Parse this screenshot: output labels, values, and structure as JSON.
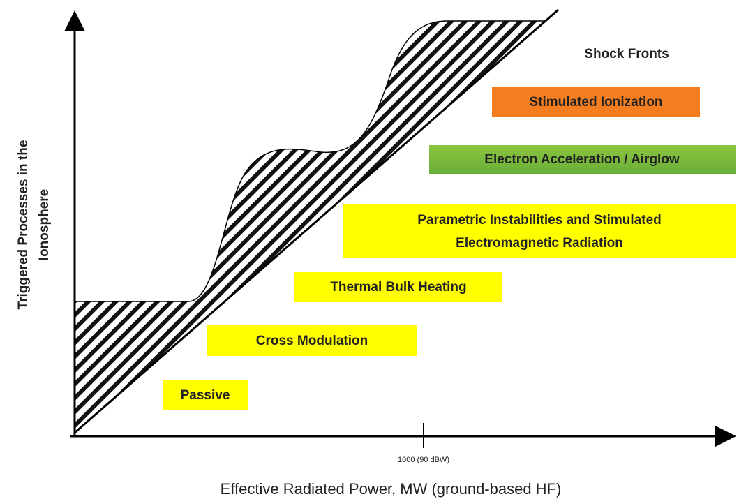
{
  "diagram": {
    "y_axis_label": [
      "Triggered Processes in the",
      "Ionosphere"
    ],
    "x_axis_label": "Effective Radiated Power, MW (ground-based HF)",
    "x_tick_label": "1000 (90 dBW)",
    "processes": {
      "shock_fronts": "Shock Fronts",
      "stimulated_ionization": "Stimulated Ionization",
      "electron_acceleration": "Electron Acceleration / Airglow",
      "parametric": [
        "Parametric Instabilities and Stimulated",
        "Electromagnetic Radiation"
      ],
      "thermal": "Thermal Bulk Heating",
      "cross_modulation": "Cross Modulation",
      "passive": "Passive"
    }
  }
}
